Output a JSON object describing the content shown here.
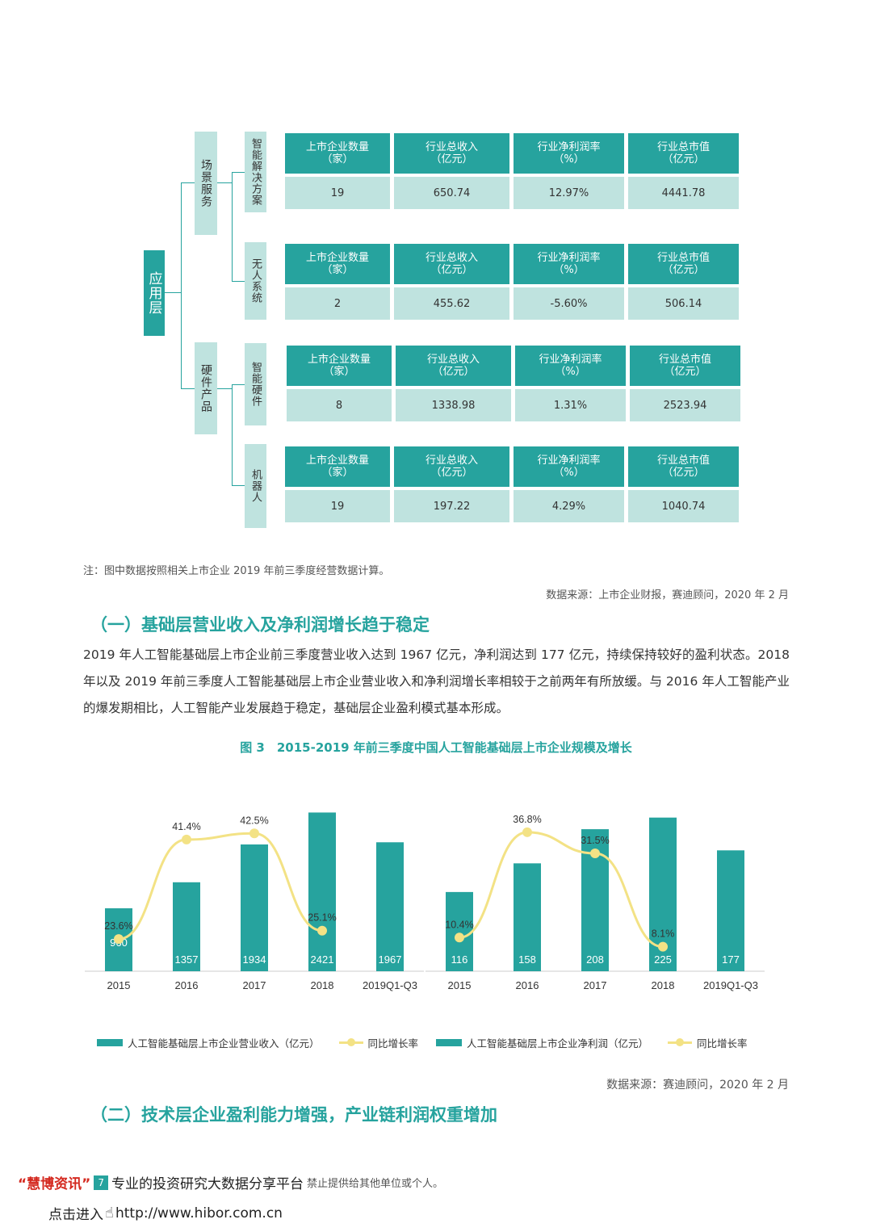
{
  "diagram": {
    "root": "应用层",
    "branches": [
      {
        "label": "场景服务"
      },
      {
        "label": "硬件产品"
      }
    ],
    "headers": [
      "上市企业数量\n（家）",
      "行业总收入\n（亿元）",
      "行业净利润率\n（%）",
      "行业总市值\n（亿元）"
    ],
    "rows": [
      {
        "label": "智能解决方案",
        "values": [
          "19",
          "650.74",
          "12.97%",
          "4441.78"
        ]
      },
      {
        "label": "无人系统",
        "values": [
          "2",
          "455.62",
          "-5.60%",
          "506.14"
        ]
      },
      {
        "label": "智能硬件",
        "values": [
          "8",
          "1338.98",
          "1.31%",
          "2523.94"
        ]
      },
      {
        "label": "机器人",
        "values": [
          "19",
          "197.22",
          "4.29%",
          "1040.74"
        ]
      }
    ]
  },
  "note": "注：图中数据按照相关上市企业 2019 年前三季度经营数据计算。",
  "source1": "数据来源：上市企业财报，赛迪顾问，2020 年 2 月",
  "section1": {
    "title": "（一）基础层营业收入及净利润增长趋于稳定",
    "paragraph": "2019 年人工智能基础层上市企业前三季度营业收入达到 1967 亿元，净利润达到 177 亿元，持续保持较好的盈利状态。2018 年以及 2019 年前三季度人工智能基础层上市企业营业收入和净利润增长率相较于之前两年有所放缓。与 2016 年人工智能产业的爆发期相比，人工智能产业发展趋于稳定，基础层企业盈利模式基本形成。"
  },
  "figure_caption": "图 3　2015-2019 年前三季度中国人工智能基础层上市企业规模及增长",
  "chart_data": [
    {
      "type": "bar",
      "categories": [
        "2015",
        "2016",
        "2017",
        "2018",
        "2019Q1-Q3"
      ],
      "series": [
        {
          "name": "人工智能基础层上市企业营业收入（亿元）",
          "values": [
            960,
            1357,
            1934,
            2421,
            1967
          ],
          "labels": [
            "960",
            "1357",
            "1934",
            "2421",
            "1967"
          ]
        },
        {
          "name": "同比增长率",
          "values": [
            23.6,
            41.4,
            42.5,
            25.1,
            null
          ],
          "labels": [
            "23.6%",
            "41.4%",
            "42.5%",
            "25.1%",
            ""
          ]
        }
      ],
      "colors": {
        "bar": "#26a39e",
        "line": "#f3e285"
      }
    },
    {
      "type": "bar",
      "categories": [
        "2015",
        "2016",
        "2017",
        "2018",
        "2019Q1-Q3"
      ],
      "series": [
        {
          "name": "人工智能基础层上市企业净利润（亿元）",
          "values": [
            116,
            158,
            208,
            225,
            177
          ],
          "labels": [
            "116",
            "158",
            "208",
            "225",
            "177"
          ]
        },
        {
          "name": "同比增长率",
          "values": [
            10.4,
            36.8,
            31.5,
            8.1,
            null
          ],
          "labels": [
            "10.4%",
            "36.8%",
            "31.5%",
            "8.1%",
            ""
          ]
        }
      ],
      "colors": {
        "bar": "#26a39e",
        "line": "#f3e285"
      }
    }
  ],
  "source2": "数据来源：赛迪顾问，2020 年 2 月",
  "section2": {
    "title": "（二）技术层企业盈利能力增强，产业链利润权重增加"
  },
  "footer": {
    "brand": "“慧博资讯”",
    "slogan": "专业的投资研究大数据分享平台",
    "notice": "禁止提供给其他单位或个人。",
    "enter": "点击进入",
    "url": "http://www.hibor.com.cn",
    "page_number": "7"
  }
}
